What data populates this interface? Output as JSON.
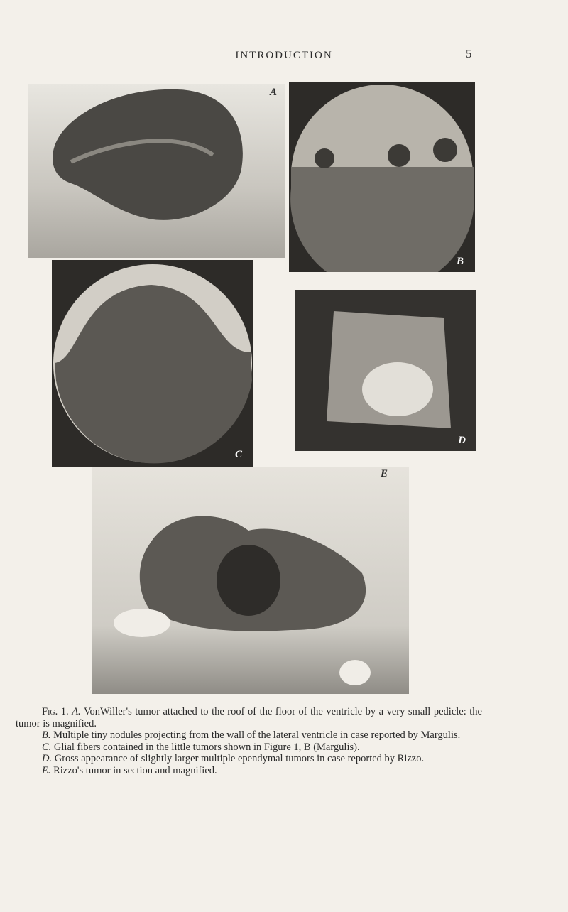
{
  "header": {
    "title": "INTRODUCTION",
    "page_number": "5"
  },
  "panels": {
    "A": "A",
    "B": "B",
    "C": "C",
    "D": "D",
    "E": "E"
  },
  "caption": {
    "figure": "Fig. 1.",
    "items": [
      {
        "letter": "A.",
        "text": "VonWiller's tumor attached to the roof of the floor of the ventricle by a very small pedicle: the tumor is magnified."
      },
      {
        "letter": "B.",
        "text": "Multiple tiny nodules projecting from the wall of the lateral ventricle in case reported by Margulis."
      },
      {
        "letter": "C.",
        "text": "Glial fibers contained in the little tumors shown in Figure 1, B (Margulis)."
      },
      {
        "letter": "D.",
        "text": "Gross appearance of slightly larger multiple ependymal tumors in case reported by Rizzo."
      },
      {
        "letter": "E.",
        "text": "Rizzo's tumor in section and magnified."
      }
    ]
  }
}
